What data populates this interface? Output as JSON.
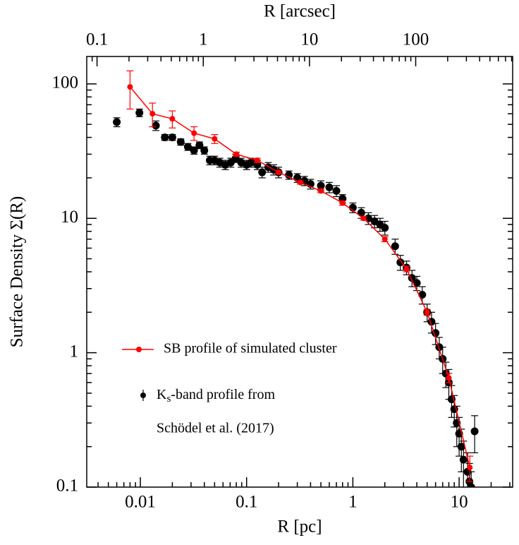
{
  "chart_data": {
    "type": "scatter",
    "xlabel": "R [pc]",
    "ylabel": "Surface Density Σ(R)",
    "x2label": "R [arcsec]",
    "xscale": "log",
    "yscale": "log",
    "xlim": [
      0.00313,
      31.9
    ],
    "xticks": [
      0.01,
      0.1,
      1,
      10
    ],
    "x2lim": [
      0.08,
      818
    ],
    "x2ticks": [
      0.1,
      1,
      10,
      100
    ],
    "ylim": [
      0.1,
      160
    ],
    "yticks": [
      0.1,
      1,
      10,
      100
    ],
    "series": [
      {
        "name": "SB profile of simulated cluster",
        "color": "#ff0000",
        "line": true,
        "x": [
          0.008,
          0.013,
          0.02,
          0.032,
          0.05,
          0.08,
          0.126,
          0.2,
          0.32,
          0.5,
          0.8,
          1.26,
          2,
          3.2,
          5,
          8,
          12.6
        ],
        "values": [
          95,
          60,
          55,
          43,
          39,
          30,
          27,
          22,
          18.5,
          16,
          13,
          10,
          7,
          4.2,
          2,
          0.65,
          0.14
        ],
        "errors": [
          30,
          12,
          8,
          5,
          3,
          1,
          1,
          0.5,
          0.5,
          0.5,
          0.5,
          0.3,
          0.3,
          0.2,
          0.1,
          0.05,
          0.03
        ]
      },
      {
        "name": "Ks-band profile from",
        "legend_note": "Schödel et al. (2017)",
        "color": "#000000",
        "line": false,
        "x": [
          0.006,
          0.0098,
          0.014,
          0.017,
          0.02,
          0.024,
          0.028,
          0.032,
          0.036,
          0.04,
          0.045,
          0.05,
          0.056,
          0.063,
          0.071,
          0.079,
          0.089,
          0.1,
          0.11,
          0.126,
          0.14,
          0.16,
          0.18,
          0.2,
          0.25,
          0.3,
          0.35,
          0.4,
          0.5,
          0.6,
          0.7,
          0.8,
          1.0,
          1.2,
          1.4,
          1.6,
          1.8,
          2.0,
          2.5,
          2.8,
          3.2,
          3.6,
          4.0,
          4.5,
          5.0,
          5.5,
          6.0,
          6.5,
          7.0,
          7.5,
          8.0,
          8.5,
          9,
          9.5,
          10,
          10.5,
          11,
          12,
          12.5,
          13,
          14
        ],
        "values": [
          52,
          61,
          49,
          40,
          40,
          37,
          34,
          32,
          35,
          32,
          27,
          27,
          26,
          25,
          26,
          28,
          26,
          25,
          26,
          25,
          22,
          24,
          23,
          22,
          21,
          20,
          19,
          18,
          17.5,
          17,
          16,
          14,
          12,
          11,
          10,
          9.5,
          9,
          8.5,
          6.2,
          4.7,
          4.3,
          3.6,
          3.3,
          2.7,
          2,
          1.7,
          1.4,
          1.1,
          0.9,
          0.7,
          0.6,
          0.45,
          0.38,
          0.3,
          0.25,
          0.2,
          0.16,
          0.13,
          0.11,
          0.1,
          0.26
        ],
        "errors": [
          4,
          4,
          4,
          2,
          2,
          2,
          2,
          2,
          2,
          2,
          2,
          2,
          2,
          2,
          2,
          2,
          2,
          2,
          2,
          2,
          2,
          2,
          2,
          2,
          1.5,
          1.5,
          1.5,
          1.5,
          1.5,
          1.5,
          1.5,
          1,
          1,
          1,
          1,
          1,
          1,
          1,
          0.8,
          0.6,
          0.5,
          0.5,
          0.4,
          0.4,
          0.3,
          0.3,
          0.25,
          0.2,
          0.2,
          0.15,
          0.15,
          0.12,
          0.1,
          0.1,
          0.08,
          0.07,
          0.06,
          0.05,
          0.04,
          0.03,
          0.08
        ]
      }
    ]
  }
}
